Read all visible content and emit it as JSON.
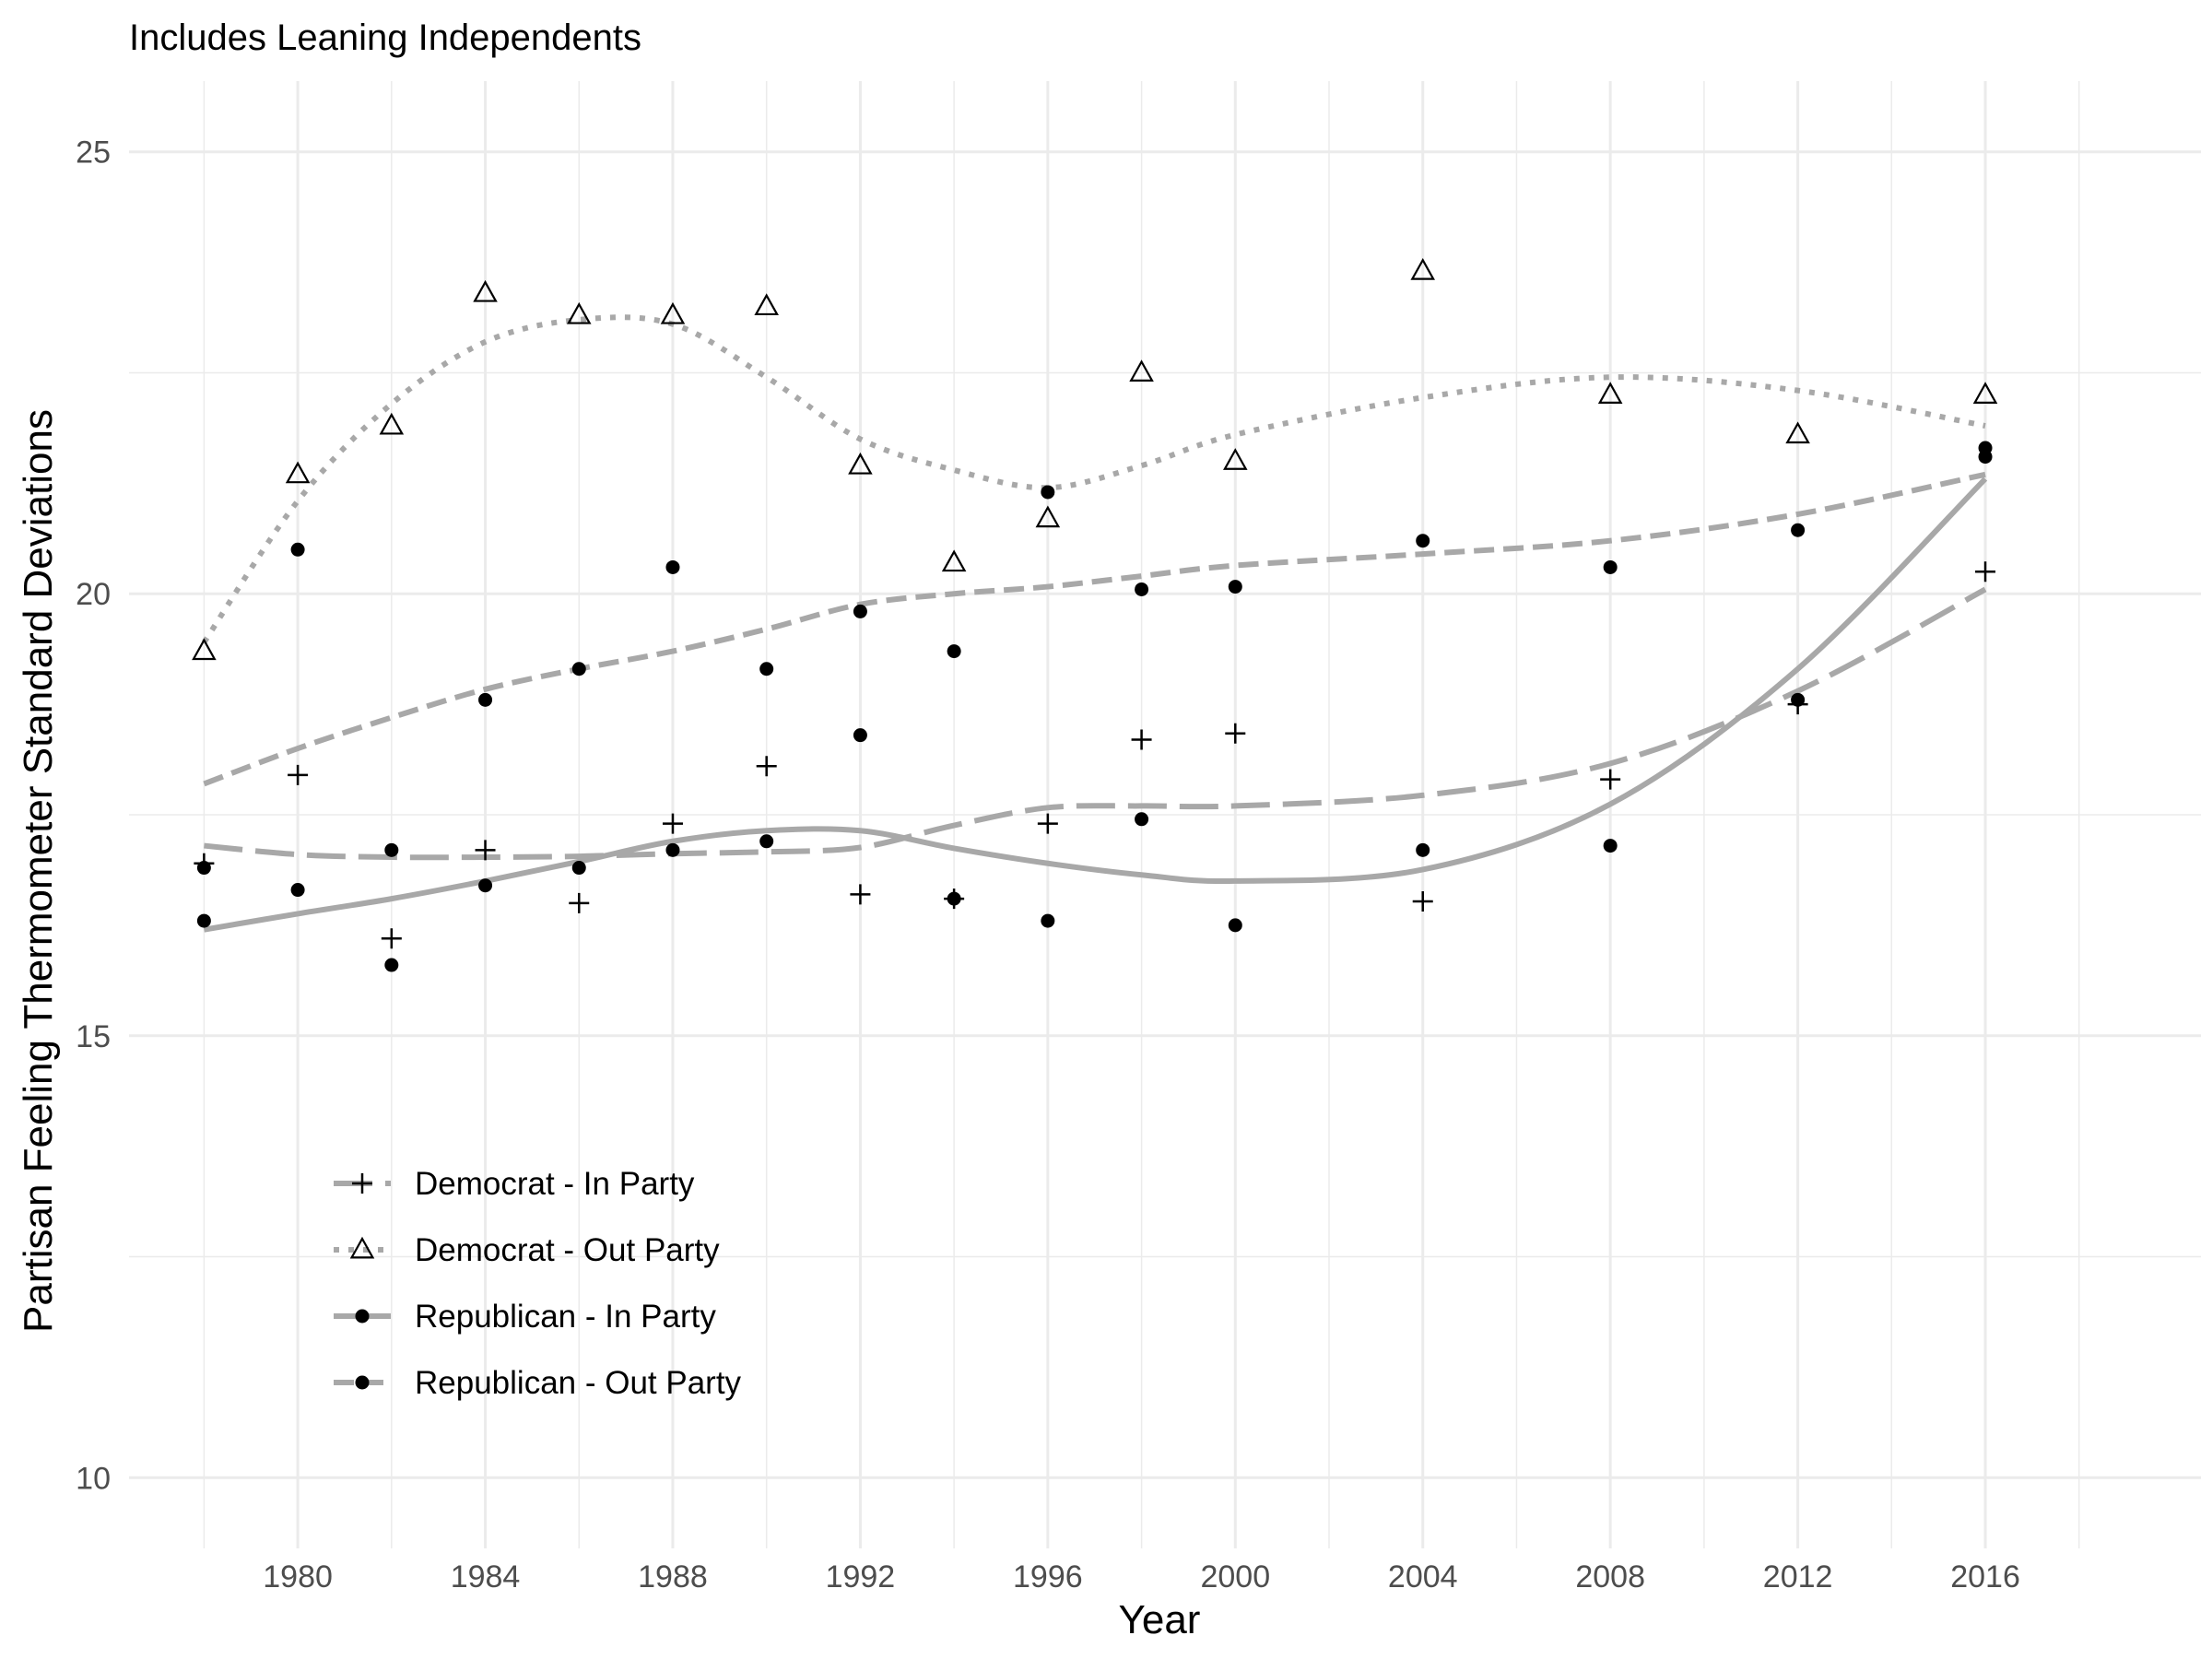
{
  "chart_data": {
    "type": "scatter",
    "title": "",
    "subtitle": "Includes Leaning Independents",
    "xlabel": "Year",
    "ylabel": "Partisan Feeling Thermometer Standard Deviations",
    "xlim": [
      1976.4,
      2020.6
    ],
    "ylim": [
      9.2,
      25.8
    ],
    "x_ticks": [
      1980,
      1984,
      1988,
      1992,
      1996,
      2000,
      2004,
      2008,
      2012,
      2016
    ],
    "x_tick_labels": [
      "1980",
      "1984",
      "1988",
      "1992",
      "1996",
      "2000",
      "2004",
      "2008",
      "2012",
      "2016"
    ],
    "y_ticks": [
      10,
      15,
      20,
      25
    ],
    "y_tick_labels": [
      "10",
      "15",
      "20",
      "25"
    ],
    "grid": true,
    "legend_position": "bottom-left-inside",
    "colors": {
      "line": "#a8a8a8",
      "point": "#000000",
      "grid": "#ebebeb"
    },
    "series": [
      {
        "name": "Democrat - In Party",
        "marker": "plus",
        "line_style": "longdash",
        "x": [
          1978,
          1980,
          1982,
          1984,
          1986,
          1988,
          1990,
          1992,
          1994,
          1996,
          1998,
          2000,
          2004,
          2008,
          2012,
          2016
        ],
        "y": [
          16.95,
          17.95,
          16.1,
          17.1,
          16.5,
          17.4,
          18.05,
          16.6,
          16.55,
          17.4,
          18.35,
          18.42,
          16.52,
          17.9,
          18.75,
          20.25
        ],
        "smooth_y": [
          17.15,
          17.05,
          17.02,
          17.02,
          17.03,
          17.06,
          17.08,
          17.13,
          17.38,
          17.58,
          17.6,
          17.6,
          17.72,
          18.08,
          18.9,
          20.05
        ]
      },
      {
        "name": "Democrat - Out Party",
        "marker": "triangle",
        "line_style": "dotted",
        "x": [
          1978,
          1980,
          1982,
          1984,
          1986,
          1988,
          1990,
          1992,
          1994,
          1996,
          1998,
          2000,
          2004,
          2008,
          2012,
          2016
        ],
        "y": [
          19.35,
          21.35,
          21.9,
          23.4,
          23.15,
          23.15,
          23.25,
          21.45,
          20.35,
          20.85,
          22.5,
          21.5,
          23.65,
          22.25,
          21.8,
          22.25
        ],
        "smooth_y": [
          19.45,
          21.05,
          22.15,
          22.85,
          23.1,
          23.05,
          22.45,
          21.75,
          21.4,
          21.2,
          21.45,
          21.8,
          22.22,
          22.45,
          22.3,
          21.9
        ]
      },
      {
        "name": "Republican - In Party",
        "marker": "dot",
        "line_style": "solid",
        "x": [
          1978,
          1980,
          1982,
          1984,
          1986,
          1988,
          1990,
          1992,
          1994,
          1996,
          1998,
          2000,
          2004,
          2008,
          2012,
          2016
        ],
        "y": [
          16.3,
          16.65,
          15.8,
          16.7,
          16.9,
          17.1,
          17.2,
          18.4,
          16.55,
          16.3,
          17.45,
          16.25,
          17.1,
          17.15,
          18.8,
          21.55
        ],
        "smooth_y": [
          16.2,
          16.38,
          16.55,
          16.75,
          16.97,
          17.2,
          17.32,
          17.32,
          17.12,
          16.95,
          16.82,
          16.75,
          16.88,
          17.62,
          19.15,
          21.3
        ]
      },
      {
        "name": "Republican - Out Party",
        "marker": "dot",
        "line_style": "dashed",
        "x": [
          1978,
          1980,
          1982,
          1984,
          1986,
          1988,
          1990,
          1992,
          1994,
          1996,
          1998,
          2000,
          2004,
          2008,
          2012,
          2016
        ],
        "y": [
          16.9,
          20.5,
          17.1,
          18.8,
          19.15,
          20.3,
          19.15,
          19.8,
          19.35,
          21.15,
          20.05,
          20.08,
          20.6,
          20.3,
          20.72,
          21.65
        ],
        "smooth_y": [
          17.85,
          18.25,
          18.6,
          18.92,
          19.15,
          19.35,
          19.6,
          19.88,
          20.0,
          20.08,
          20.2,
          20.32,
          20.45,
          20.6,
          20.9,
          21.35
        ]
      }
    ]
  }
}
